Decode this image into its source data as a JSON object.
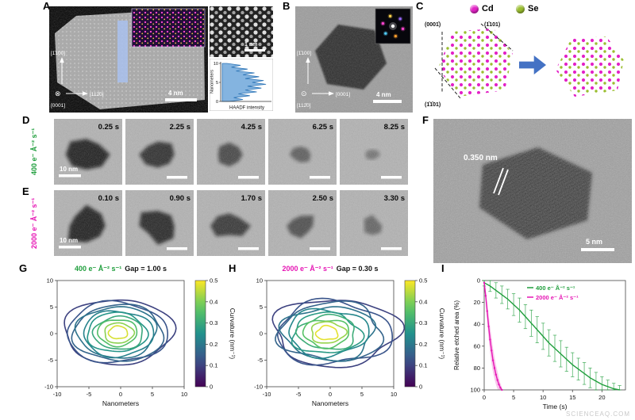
{
  "figure": {
    "watermark": "SCIENCEAQ.COM",
    "panels": {
      "A": {
        "label": "A",
        "scale_bar": "4 nm",
        "atomic_scale_bar": "1 nm",
        "axis_up": "[1̄100]",
        "axis_right": "[112̄0]",
        "axis_below": "[0001]",
        "beam_symbol": "⊗"
      },
      "B": {
        "label": "B",
        "scale_bar": "4 nm",
        "axis_up": "[1̄100]",
        "axis_right": "[0001]",
        "axis_below": "[112̄0]",
        "beam_symbol": "⊙"
      },
      "C": {
        "label": "C",
        "legend": [
          {
            "name": "Cd",
            "color": "#e322c6"
          },
          {
            "name": "Se",
            "color": "#9abe2f"
          }
        ],
        "planes": [
          "(0001̄)",
          "(1̄101)",
          "(1̄1̄01)"
        ],
        "arrow_color": "#4472c4"
      },
      "D": {
        "label": "D",
        "dose": "400 e⁻ Å⁻² s⁻¹",
        "color": "#1f9e3c",
        "scale_bar": "10 nm",
        "frames": [
          {
            "time": "0.25 s",
            "size": 1.0,
            "fade": 0.95
          },
          {
            "time": "2.25 s",
            "size": 0.82,
            "fade": 0.85
          },
          {
            "time": "4.25 s",
            "size": 0.66,
            "fade": 0.7
          },
          {
            "time": "6.25 s",
            "size": 0.5,
            "fade": 0.55
          },
          {
            "time": "8.25 s",
            "size": 0.34,
            "fade": 0.4
          }
        ]
      },
      "E": {
        "label": "E",
        "dose": "2000 e⁻ Å⁻² s⁻¹",
        "color": "#e616b4",
        "scale_bar": "10 nm",
        "frames": [
          {
            "time": "0.10 s",
            "size": 1.0,
            "fade": 0.95
          },
          {
            "time": "0.90 s",
            "size": 0.94,
            "fade": 0.9
          },
          {
            "time": "1.70 s",
            "size": 0.82,
            "fade": 0.8
          },
          {
            "time": "2.50 s",
            "size": 0.66,
            "fade": 0.65
          },
          {
            "time": "3.30 s",
            "size": 0.52,
            "fade": 0.5
          }
        ]
      },
      "F": {
        "label": "F",
        "lattice_spacing": "0.350 nm",
        "scale_bar": "5 nm"
      },
      "G": {
        "label": "G"
      },
      "H": {
        "label": "H"
      },
      "I": {
        "label": "I"
      }
    }
  },
  "chart_data": [
    {
      "id": "haadf_profile",
      "type": "line",
      "xlabel": "HAADF intensity",
      "ylabel": "Nanometers",
      "yticks": [
        10,
        5,
        0
      ],
      "position_nm": [
        0,
        0.5,
        1,
        1.5,
        2,
        2.5,
        3,
        3.5,
        4,
        4.5,
        5,
        5.5,
        6,
        6.5,
        7,
        7.5,
        8,
        8.5,
        9,
        9.5,
        10
      ],
      "intensity": [
        0.15,
        0.45,
        0.25,
        0.6,
        0.35,
        0.75,
        0.5,
        0.85,
        0.55,
        0.95,
        0.65,
        0.9,
        0.5,
        0.8,
        0.45,
        0.7,
        0.3,
        0.55,
        0.2,
        0.4,
        0.1
      ]
    },
    {
      "id": "contours_400",
      "type": "contour",
      "title_dose": "400 e⁻ Å⁻² s⁻¹",
      "title_gap": "Gap = 1.00 s",
      "accent": "#1f9e3c",
      "xlabel": "Nanometers",
      "xlim": [
        -10,
        10
      ],
      "ylim": [
        -10,
        10
      ],
      "xticks": [
        -10,
        -5,
        0,
        5,
        10
      ],
      "yticks": [
        10,
        5,
        0,
        -5,
        -10
      ],
      "wobble": [
        0.05,
        0.03
      ],
      "colorbar": {
        "label": "Curvature (nm⁻¹)",
        "range": [
          0,
          0.5
        ],
        "ticks": [
          0,
          0.1,
          0.2,
          0.3,
          0.4,
          0.5
        ]
      },
      "contours": [
        {
          "rx": 8.6,
          "ry": 6.1,
          "cx": -0.4,
          "cy": 0.4,
          "curvature": 0.1
        },
        {
          "rx": 7.9,
          "ry": 5.7,
          "cx": -0.6,
          "cy": 0.2,
          "curvature": 0.13
        },
        {
          "rx": 7.1,
          "ry": 5.3,
          "cx": -0.3,
          "cy": 0.1,
          "curvature": 0.16
        },
        {
          "rx": 6.3,
          "ry": 4.8,
          "cx": -0.6,
          "cy": 0.3,
          "curvature": 0.19
        },
        {
          "rx": 5.5,
          "ry": 4.3,
          "cx": -0.4,
          "cy": 0.0,
          "curvature": 0.22
        },
        {
          "rx": 4.7,
          "ry": 3.7,
          "cx": -0.6,
          "cy": 0.2,
          "curvature": 0.26
        },
        {
          "rx": 3.9,
          "ry": 3.1,
          "cx": -0.3,
          "cy": 0.1,
          "curvature": 0.3
        },
        {
          "rx": 3.1,
          "ry": 2.5,
          "cx": -0.5,
          "cy": 0.2,
          "curvature": 0.35
        },
        {
          "rx": 2.3,
          "ry": 1.9,
          "cx": -0.3,
          "cy": 0.1,
          "curvature": 0.41
        },
        {
          "rx": 1.5,
          "ry": 1.2,
          "cx": -0.4,
          "cy": 0.2,
          "curvature": 0.47
        }
      ]
    },
    {
      "id": "contours_2000",
      "type": "contour",
      "title_dose": "2000 e⁻ Å⁻² s⁻¹",
      "title_gap": "Gap = 0.30 s",
      "accent": "#e616b4",
      "xlabel": "Nanometers",
      "xlim": [
        -10,
        10
      ],
      "ylim": [
        -10,
        10
      ],
      "xticks": [
        -10,
        -5,
        0,
        5,
        10
      ],
      "yticks": [
        10,
        5,
        0,
        -5,
        -10
      ],
      "wobble": [
        0.09,
        0.05
      ],
      "colorbar": {
        "label": "Curvature (nm⁻¹)",
        "range": [
          0,
          0.5
        ],
        "ticks": [
          0,
          0.1,
          0.2,
          0.3,
          0.4,
          0.5
        ]
      },
      "contours": [
        {
          "rx": 9.8,
          "ry": 6.3,
          "cx": 0.8,
          "cy": 0.3,
          "curvature": 0.1
        },
        {
          "rx": 9.0,
          "ry": 5.9,
          "cx": 0.5,
          "cy": 0.1,
          "curvature": 0.13
        },
        {
          "rx": 8.1,
          "ry": 5.5,
          "cx": 0.2,
          "cy": 0.3,
          "curvature": 0.16
        },
        {
          "rx": 7.2,
          "ry": 5.0,
          "cx": -0.2,
          "cy": 0.1,
          "curvature": 0.19
        },
        {
          "rx": 6.3,
          "ry": 4.4,
          "cx": -0.4,
          "cy": 0.2,
          "curvature": 0.23
        },
        {
          "rx": 5.4,
          "ry": 3.8,
          "cx": -0.6,
          "cy": 0.0,
          "curvature": 0.27
        },
        {
          "rx": 4.5,
          "ry": 3.2,
          "cx": -0.4,
          "cy": 0.2,
          "curvature": 0.31
        },
        {
          "rx": 3.6,
          "ry": 2.6,
          "cx": -0.6,
          "cy": 0.1,
          "curvature": 0.36
        },
        {
          "rx": 2.7,
          "ry": 2.0,
          "cx": -0.4,
          "cy": 0.2,
          "curvature": 0.42
        },
        {
          "rx": 1.7,
          "ry": 1.3,
          "cx": -0.5,
          "cy": 0.1,
          "curvature": 0.48
        }
      ]
    },
    {
      "id": "etched_area",
      "type": "line",
      "xlabel": "Time (s)",
      "ylabel": "Relative etched area (%)",
      "xlim": [
        0,
        24
      ],
      "ylim": [
        0,
        100
      ],
      "y_inverted": true,
      "xticks": [
        0,
        5,
        10,
        15,
        20
      ],
      "yticks": [
        0,
        20,
        40,
        60,
        80,
        100
      ],
      "series": [
        {
          "name": "400 e⁻ Å⁻² s⁻¹",
          "color": "#1f9e3c",
          "x": [
            0,
            1,
            2,
            3,
            4,
            5,
            6,
            7,
            8,
            9,
            10,
            11,
            12,
            13,
            14,
            15,
            16,
            17,
            18,
            19,
            20,
            21,
            22,
            23
          ],
          "y": [
            2,
            5,
            9,
            13,
            17,
            22,
            27,
            33,
            39,
            45,
            51,
            57,
            62,
            67,
            72,
            77,
            81,
            85,
            89,
            92,
            95,
            97,
            99,
            100
          ],
          "yerr": [
            3,
            5,
            7,
            8,
            9,
            10,
            11,
            11,
            12,
            12,
            12,
            12,
            12,
            12,
            11,
            11,
            10,
            10,
            9,
            8,
            7,
            6,
            5,
            4
          ]
        },
        {
          "name": "2000 e⁻ Å⁻² s⁻¹",
          "color": "#e616b4",
          "x": [
            0,
            0.25,
            0.5,
            0.75,
            1.0,
            1.25,
            1.5,
            1.75,
            2.0,
            2.25,
            2.5,
            2.75,
            3.0
          ],
          "y": [
            2,
            14,
            28,
            42,
            54,
            64,
            73,
            80,
            86,
            91,
            95,
            98,
            100
          ],
          "yerr": [
            2,
            6,
            9,
            11,
            12,
            12,
            11,
            10,
            9,
            8,
            6,
            4,
            2
          ]
        }
      ]
    }
  ]
}
